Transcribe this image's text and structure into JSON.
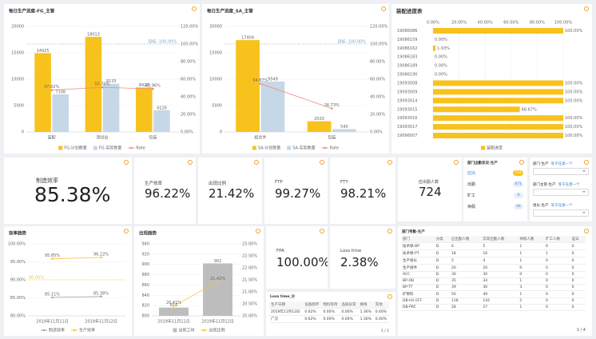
{
  "chart_data": [
    {
      "type": "bar",
      "title": "每日生产进度-FG_主管",
      "categories": [
        "装配",
        "测试出",
        "包装"
      ],
      "series": [
        {
          "name": "FG-计划数量",
          "color": "#f8c21d",
          "values": [
            14925,
            18013,
            8427
          ]
        },
        {
          "name": "FG-实际数量",
          "color": "#c6d7e7",
          "values": [
            7108,
            9133,
            4126
          ]
        },
        {
          "name": "Rate",
          "color": "#ee8b7b",
          "type": "line",
          "axis": "y2",
          "values": [
            47.62,
            50.7,
            48.96
          ],
          "value_labels": [
            "47.62%",
            "50.70%",
            "48.96%"
          ]
        }
      ],
      "ylim": [
        0,
        20000
      ],
      "yticks": [
        0,
        5000,
        10000,
        15000,
        20000
      ],
      "y2lim": [
        0,
        120
      ],
      "y2ticks": [
        {
          "value": 0,
          "label": "0.00%"
        },
        {
          "value": 20,
          "label": "20.00%"
        },
        {
          "value": 40,
          "label": "40.00%"
        },
        {
          "value": 60,
          "label": "60.00%"
        },
        {
          "value": 80,
          "label": "80.00%"
        },
        {
          "value": 100,
          "label": "100.00%"
        },
        {
          "value": 120,
          "label": "120.00%"
        }
      ],
      "target": {
        "value": 100,
        "label": "目标: 100.00%",
        "axis": "y2",
        "color": "#7aa6c8"
      },
      "grid": true
    },
    {
      "type": "bar",
      "title": "每日生产进度_SA_主管",
      "categories": [
        "组合件",
        "包装"
      ],
      "series": [
        {
          "name": "SA-计划数量",
          "color": "#f8c21d",
          "values": [
            17404,
            2020
          ]
        },
        {
          "name": "SA-实际数量",
          "color": "#c6d7e7",
          "values": [
            9549,
            540
          ]
        },
        {
          "name": "Rate",
          "color": "#ee8b7b",
          "type": "line",
          "axis": "y2",
          "values": [
            54.87,
            26.73
          ],
          "value_labels": [
            "54.87%",
            "26.73%"
          ]
        }
      ],
      "ylim": [
        0,
        20000
      ],
      "yticks": [
        0,
        5000,
        10000,
        15000,
        20000
      ],
      "y2lim": [
        0,
        120
      ],
      "y2ticks": [
        {
          "value": 0,
          "label": "0.00%"
        },
        {
          "value": 20,
          "label": "20.00%"
        },
        {
          "value": 40,
          "label": "40.00%"
        },
        {
          "value": 60,
          "label": "60.00%"
        },
        {
          "value": 80,
          "label": "80.00%"
        },
        {
          "value": 100,
          "label": "100.00%"
        },
        {
          "value": 120,
          "label": "120.00%"
        }
      ],
      "target": {
        "value": 100,
        "label": "目标: 100.00%",
        "axis": "y2",
        "color": "#7aa6c8"
      },
      "grid": true
    },
    {
      "type": "bar",
      "orientation": "horizontal",
      "title": "装配进度表",
      "categories": [
        "19086086",
        "19086159",
        "19086162",
        "19086183",
        "19086189",
        "19086190",
        "19093008",
        "19093009",
        "19093014",
        "19093015",
        "19093016",
        "19093017",
        "19096007"
      ],
      "series": [
        {
          "name": "装配进度",
          "color": "#f8c21d",
          "values": [
            100,
            0,
            1.93,
            0,
            0,
            0,
            100,
            100,
            100,
            66.67,
            100,
            100,
            100
          ],
          "value_labels": [
            "100.00%",
            "0.00%",
            "1.93%",
            "0.00%",
            "0.00%",
            "0.00%",
            "100.00%",
            "100.00%",
            "100.00%",
            "66.67%",
            "100.00%",
            "100.00%",
            "100.00%"
          ]
        }
      ],
      "xlim": [
        0,
        100
      ],
      "xticks": [
        {
          "value": 0,
          "label": "0.00%"
        },
        {
          "value": 20,
          "label": "20.00%"
        },
        {
          "value": 40,
          "label": "40.00%"
        },
        {
          "value": 60,
          "label": "60.00%"
        },
        {
          "value": 80,
          "label": "80.00%"
        },
        {
          "value": 100,
          "label": "100.00%"
        }
      ],
      "grid": true
    },
    {
      "type": "line",
      "title": "效率趋势",
      "categories": [
        "2019年11月11日",
        "2019年11月12日"
      ],
      "series": [
        {
          "name": "制造效率",
          "color": "#9aa7b4",
          "values": [
            85.11,
            85.38
          ],
          "value_labels": [
            "85.11%",
            "85.38%"
          ]
        },
        {
          "name": "生产效率",
          "color": "#f6c342",
          "values": [
            95.85,
            96.22
          ],
          "value_labels": [
            "95.85%",
            "96.22%"
          ]
        }
      ],
      "ylim": [
        80,
        100
      ],
      "yticks": [
        {
          "value": 80,
          "label": "80.00%"
        },
        {
          "value": 85,
          "label": "85.00%"
        },
        {
          "value": 90,
          "label": "90.00%"
        },
        {
          "value": 95,
          "label": "95.00%"
        },
        {
          "value": 100,
          "label": "100.00%"
        }
      ],
      "target": {
        "value": 90,
        "label": "90.00%",
        "axis": "y",
        "color": "#f6c342"
      },
      "grid": true
    },
    {
      "type": "bar",
      "title": "出现趋势",
      "categories": [
        "2019年11月11日",
        "2019年11月12日"
      ],
      "series": [
        {
          "name": "出现工时",
          "color": "#bdbdbd",
          "values": [
            816,
            902
          ]
        },
        {
          "name": "出现比例",
          "color": "#f6c342",
          "type": "line",
          "axis": "y2",
          "values": [
            20.41,
            21.42
          ],
          "value_labels": [
            "20.41%",
            "21.42%"
          ]
        }
      ],
      "ylim": [
        800,
        940
      ],
      "yticks": [
        800,
        820,
        840,
        860,
        880,
        900,
        920,
        940
      ],
      "y2lim": [
        20,
        23
      ],
      "y2ticks": [
        {
          "value": 20,
          "label": "20.00%"
        },
        {
          "value": 20.5,
          "label": "20.50%"
        },
        {
          "value": 21,
          "label": "21.00%"
        },
        {
          "value": 21.5,
          "label": "21.50%"
        },
        {
          "value": 22,
          "label": "22.00%"
        },
        {
          "value": 22.5,
          "label": "22.50%"
        },
        {
          "value": 23,
          "label": "23.00%"
        }
      ],
      "grid": true
    }
  ],
  "kpis": [
    {
      "label": "制造效率",
      "value": "85.38%"
    },
    {
      "label": "生产效率",
      "value": "96.22%"
    },
    {
      "label": "出现比例",
      "value": "21.42%"
    },
    {
      "label": "FTP",
      "value": "99.27%"
    },
    {
      "label": "FTY",
      "value": "98.21%"
    },
    {
      "label": "FPA",
      "value": "100.00%"
    },
    {
      "label": "Loss time",
      "value": "2.38%"
    }
  ],
  "headcount": {
    "label": "应出勤人数",
    "value": 724
  },
  "attendance": {
    "title": "部门出勤状况-生产",
    "rows": [
      {
        "label": "应出",
        "value": 724
      },
      {
        "label": "出勤",
        "value": 671
      },
      {
        "label": "旷工",
        "value": 0
      },
      {
        "label": "休假",
        "value": 44
      }
    ]
  },
  "filters": [
    {
      "label": "部门-生产",
      "op": "等于任意一个"
    },
    {
      "label": "部门主管-生产",
      "op": "等于任意一个"
    },
    {
      "label": "组长-生产",
      "op": "等于任意一个"
    }
  ],
  "loss_table": {
    "title": "Loss time_分",
    "headers": [
      "生产日期",
      "设备损坏",
      "物料等待",
      "品质异常",
      "换线",
      "其他"
    ],
    "rows": [
      [
        "2019年11月12日",
        "0.62%",
        "0.00%",
        "0.00%",
        "1.36%",
        "0.40%"
      ],
      [
        "广汉",
        "0.62%",
        "0.00%",
        "0.00%",
        "1.36%",
        "0.40%"
      ]
    ],
    "pagination": "1 / 1"
  },
  "dept_table": {
    "title": "部门考勤-生产",
    "headers": [
      "部门",
      "分类",
      "应出勤人数",
      "实际出勤人数",
      "休假人数",
      "旷工人数",
      "差异"
    ],
    "rows": [
      [
        "技术保-BP",
        "D",
        6,
        5,
        1,
        0,
        0
      ],
      [
        "技术保-PT",
        "D",
        18,
        16,
        1,
        1,
        0
      ],
      [
        "生产组长",
        "D",
        5,
        4,
        1,
        0,
        0
      ],
      [
        "生产组件",
        "D",
        20,
        20,
        0,
        0,
        0
      ],
      [
        "ACC",
        "D",
        30,
        30,
        0,
        0,
        0
      ],
      [
        "BP-OB",
        "D",
        35,
        34,
        1,
        0,
        0
      ],
      [
        "BP-TT",
        "D",
        39,
        36,
        3,
        0,
        0
      ],
      [
        "矿物料",
        "D",
        50,
        49,
        1,
        0,
        0
      ],
      [
        "DB-HV EFF",
        "D",
        118,
        116,
        2,
        0,
        0
      ],
      [
        "DB-PRC",
        "D",
        28,
        27,
        1,
        0,
        0
      ]
    ],
    "pagination": "1 / 4"
  }
}
